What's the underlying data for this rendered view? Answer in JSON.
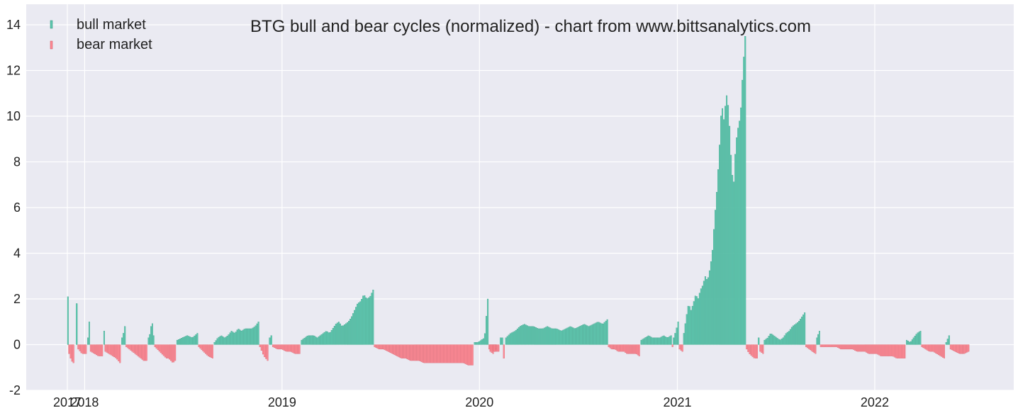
{
  "chart_data": {
    "type": "bar",
    "title": "BTG bull and bear cycles (normalized)  - chart from www.bittsanalytics.com",
    "xlabel": "",
    "ylabel": "",
    "x_range": [
      "2017-09-15",
      "2022-09-15"
    ],
    "ylim": [
      -2,
      14.9
    ],
    "y_ticks": [
      -2,
      0,
      2,
      4,
      6,
      8,
      10,
      12,
      14
    ],
    "x_ticks": [
      {
        "label": "2017",
        "date": "2017-11-30"
      },
      {
        "label": "2018",
        "date": "2018-01-01"
      },
      {
        "label": "2019",
        "date": "2019-01-01"
      },
      {
        "label": "2020",
        "date": "2020-01-01"
      },
      {
        "label": "2021",
        "date": "2021-01-01"
      },
      {
        "label": "2022",
        "date": "2022-01-01"
      }
    ],
    "grid": true,
    "legend_position": "top-left",
    "colors": {
      "background": "#eaeaf2",
      "grid": "#ffffff",
      "bull": "#5fc9b0",
      "bull_edge": "#2a8f78",
      "bear": "#ff8a95",
      "bear_edge": "#c8505c"
    },
    "series": [
      {
        "name": "bull market",
        "key": "bull",
        "segments": [
          {
            "start": "2017-11-30",
            "end": "2017-12-02",
            "values": [
              2.1,
              1.0
            ]
          },
          {
            "start": "2017-12-16",
            "end": "2017-12-19",
            "values": [
              1.8,
              2.3
            ]
          },
          {
            "start": "2018-01-06",
            "end": "2018-01-11",
            "values": [
              0.3,
              0.6,
              1.0
            ]
          },
          {
            "start": "2018-02-05",
            "end": "2018-02-07",
            "values": [
              0.6
            ]
          },
          {
            "start": "2018-03-10",
            "end": "2018-03-18",
            "values": [
              0.3,
              0.5,
              0.8
            ]
          },
          {
            "start": "2018-04-28",
            "end": "2018-05-10",
            "values": [
              0.3,
              0.5,
              1.1,
              0.4
            ]
          },
          {
            "start": "2018-06-20",
            "end": "2018-07-30",
            "values": [
              0.2,
              0.3,
              0.4,
              0.3,
              0.5
            ]
          },
          {
            "start": "2018-08-28",
            "end": "2018-11-20",
            "values": [
              0.1,
              0.3,
              0.4,
              0.3,
              0.4,
              0.6,
              0.5,
              0.7,
              0.6,
              0.7,
              0.7,
              0.7,
              0.8,
              1.0
            ]
          },
          {
            "start": "2018-12-08",
            "end": "2018-12-14",
            "values": [
              0.3,
              0.4
            ]
          },
          {
            "start": "2019-02-05",
            "end": "2019-06-20",
            "values": [
              0.2,
              0.3,
              0.4,
              0.4,
              0.4,
              0.3,
              0.4,
              0.5,
              0.6,
              0.5,
              0.7,
              0.9,
              1.0,
              0.8,
              0.9,
              1.0,
              1.2,
              1.5,
              1.8,
              1.9,
              2.2,
              2.0,
              2.1,
              2.4
            ]
          },
          {
            "start": "2019-12-22",
            "end": "2020-01-18",
            "values": [
              0.1,
              0.1,
              0.2,
              0.3,
              2.0
            ]
          },
          {
            "start": "2020-02-08",
            "end": "2020-02-14",
            "values": [
              0.3
            ]
          },
          {
            "start": "2020-02-18",
            "end": "2020-08-26",
            "values": [
              0.3,
              0.5,
              0.6,
              0.8,
              0.9,
              0.8,
              0.8,
              0.7,
              0.7,
              0.8,
              0.7,
              0.7,
              0.6,
              0.7,
              0.8,
              0.7,
              0.8,
              0.9,
              0.8,
              0.9,
              1.0,
              0.9,
              1.1
            ]
          },
          {
            "start": "2020-10-25",
            "end": "2020-12-22",
            "values": [
              0.2,
              0.3,
              0.4,
              0.3,
              0.3,
              0.3,
              0.4,
              0.3,
              0.4
            ]
          },
          {
            "start": "2020-12-24",
            "end": "2021-01-04",
            "values": [
              0.3,
              0.6,
              1.0
            ]
          },
          {
            "start": "2021-01-12",
            "end": "2021-05-08",
            "values": [
              0.5,
              1.2,
              1.8,
              1.5,
              1.8,
              2.2,
              2.0,
              2.4,
              2.6,
              3.0,
              2.8,
              3.3,
              4.0,
              5.5,
              6.8,
              8.5,
              10.6,
              9.8,
              11.0,
              10.3,
              8.2,
              6.8,
              8.8,
              9.5,
              10.0,
              12.0,
              13.5
            ]
          },
          {
            "start": "2021-05-30",
            "end": "2021-06-02",
            "values": [
              0.3
            ]
          },
          {
            "start": "2021-06-10",
            "end": "2021-08-26",
            "values": [
              0.2,
              0.3,
              0.5,
              0.4,
              0.3,
              0.2,
              0.3,
              0.5,
              0.6,
              0.8,
              0.9,
              1.0,
              1.2,
              1.4
            ]
          },
          {
            "start": "2021-09-15",
            "end": "2021-09-22",
            "values": [
              0.3,
              0.6
            ]
          },
          {
            "start": "2022-02-28",
            "end": "2022-03-28",
            "values": [
              0.2,
              0.1,
              0.3,
              0.5,
              0.6
            ]
          },
          {
            "start": "2022-05-12",
            "end": "2022-05-20",
            "values": [
              0.1,
              0.4
            ]
          }
        ]
      },
      {
        "name": "bear market",
        "key": "bear",
        "segments": [
          {
            "start": "2017-12-02",
            "end": "2017-12-13",
            "values": [
              -0.4,
              -0.7,
              -0.8
            ]
          },
          {
            "start": "2017-12-19",
            "end": "2018-01-05",
            "values": [
              -0.2,
              -0.4,
              -0.4
            ]
          },
          {
            "start": "2018-01-11",
            "end": "2018-02-04",
            "values": [
              -0.3,
              -0.4,
              -0.5,
              -0.5
            ]
          },
          {
            "start": "2018-02-07",
            "end": "2018-03-09",
            "values": [
              -0.3,
              -0.4,
              -0.5,
              -0.6,
              -0.8
            ]
          },
          {
            "start": "2018-03-18",
            "end": "2018-04-27",
            "values": [
              -0.1,
              -0.2,
              -0.3,
              -0.4,
              -0.5,
              -0.6,
              -0.7,
              -0.7
            ]
          },
          {
            "start": "2018-05-10",
            "end": "2018-06-19",
            "values": [
              -0.1,
              -0.2,
              -0.3,
              -0.4,
              -0.5,
              -0.6,
              -0.6,
              -0.7,
              -0.8,
              -0.7
            ]
          },
          {
            "start": "2018-07-30",
            "end": "2018-08-27",
            "values": [
              -0.1,
              -0.3,
              -0.5,
              -0.6
            ]
          },
          {
            "start": "2018-11-20",
            "end": "2018-12-07",
            "values": [
              -0.1,
              -0.3,
              -0.5,
              -0.6,
              -0.7
            ]
          },
          {
            "start": "2018-12-14",
            "end": "2019-02-04",
            "values": [
              -0.1,
              -0.2,
              -0.2,
              -0.3,
              -0.3,
              -0.4,
              -0.4
            ]
          },
          {
            "start": "2019-06-20",
            "end": "2019-12-21",
            "values": [
              -0.1,
              -0.2,
              -0.2,
              -0.3,
              -0.4,
              -0.5,
              -0.6,
              -0.6,
              -0.7,
              -0.7,
              -0.7,
              -0.8,
              -0.8,
              -0.8,
              -0.8,
              -0.8,
              -0.8,
              -0.8,
              -0.8,
              -0.8,
              -0.8,
              -0.9,
              -0.9
            ]
          },
          {
            "start": "2020-01-18",
            "end": "2020-02-07",
            "values": [
              -0.2,
              -0.3,
              -0.3
            ]
          },
          {
            "start": "2020-02-14",
            "end": "2020-02-17",
            "values": [
              -0.6
            ]
          },
          {
            "start": "2020-01-20",
            "end": "2020-02-02",
            "values": [
              -0.3,
              -0.4,
              -0.2
            ]
          },
          {
            "start": "2020-08-26",
            "end": "2020-10-24",
            "values": [
              -0.1,
              -0.2,
              -0.2,
              -0.3,
              -0.3,
              -0.3,
              -0.4,
              -0.4,
              -0.4,
              -0.4,
              -0.5
            ]
          },
          {
            "start": "2020-12-22",
            "end": "2020-12-24",
            "values": [
              -0.1
            ]
          },
          {
            "start": "2021-01-04",
            "end": "2021-01-12",
            "values": [
              -0.2,
              -0.3
            ]
          },
          {
            "start": "2021-05-08",
            "end": "2021-05-30",
            "values": [
              -0.2,
              -0.4,
              -0.5,
              -0.6,
              -0.6
            ]
          },
          {
            "start": "2021-06-02",
            "end": "2021-06-10",
            "values": [
              -0.3,
              -0.4
            ]
          },
          {
            "start": "2021-08-26",
            "end": "2021-09-15",
            "values": [
              -0.1,
              -0.2,
              -0.3,
              -0.4
            ]
          },
          {
            "start": "2021-09-22",
            "end": "2022-02-27",
            "values": [
              -0.1,
              -0.1,
              -0.1,
              -0.1,
              -0.1,
              -0.2,
              -0.2,
              -0.2,
              -0.2,
              -0.3,
              -0.3,
              -0.3,
              -0.4,
              -0.4,
              -0.4,
              -0.5,
              -0.5,
              -0.5,
              -0.5,
              -0.6,
              -0.6,
              -0.6
            ]
          },
          {
            "start": "2022-03-28",
            "end": "2022-05-11",
            "values": [
              -0.1,
              -0.2,
              -0.3,
              -0.3,
              -0.4,
              -0.5,
              -0.6
            ]
          },
          {
            "start": "2022-05-20",
            "end": "2022-06-25",
            "values": [
              -0.2,
              -0.3,
              -0.4,
              -0.4,
              -0.3
            ]
          }
        ]
      }
    ]
  }
}
